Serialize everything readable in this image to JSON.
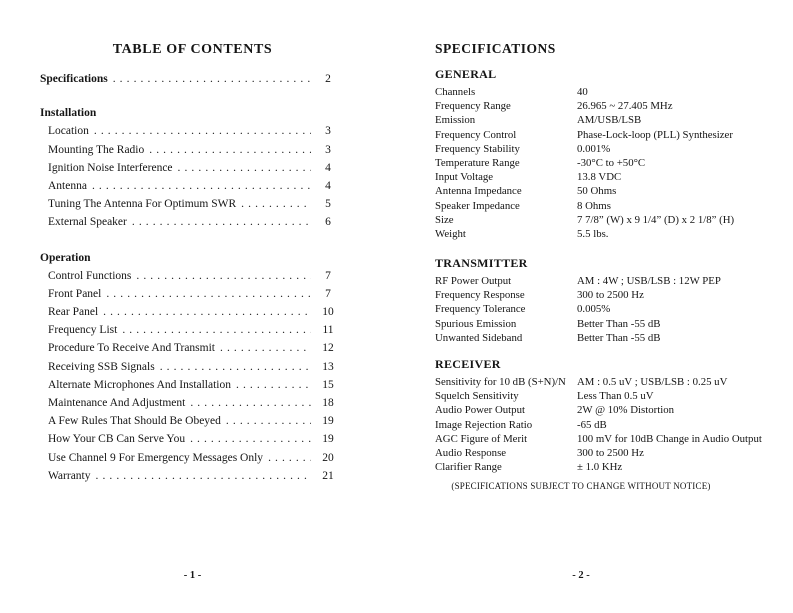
{
  "page1": {
    "title": "TABLE OF CONTENTS",
    "spec_entry": {
      "label": "Specifications",
      "page": "2"
    },
    "sections": [
      {
        "heading": "Installation",
        "items": [
          {
            "label": "Location",
            "page": "3"
          },
          {
            "label": "Mounting The Radio",
            "page": "3"
          },
          {
            "label": "Ignition Noise Interference",
            "page": "4"
          },
          {
            "label": "Antenna",
            "page": "4"
          },
          {
            "label": "Tuning The Antenna For Optimum SWR",
            "page": "5"
          },
          {
            "label": "External Speaker",
            "page": "6"
          }
        ]
      },
      {
        "heading": "Operation",
        "items": [
          {
            "label": "Control Functions",
            "page": "7"
          },
          {
            "label": "Front Panel",
            "page": "7"
          },
          {
            "label": "Rear Panel",
            "page": "10"
          },
          {
            "label": "Frequency List",
            "page": "11"
          },
          {
            "label": "Procedure To Receive And Transmit",
            "page": "12"
          },
          {
            "label": "Receiving SSB Signals",
            "page": "13"
          },
          {
            "label": "Alternate Microphones And Installation",
            "page": "15"
          },
          {
            "label": "Maintenance And Adjustment",
            "page": "18"
          },
          {
            "label": "A Few Rules That Should Be Obeyed",
            "page": "19"
          },
          {
            "label": "How Your CB Can Serve You",
            "page": "19"
          },
          {
            "label": "Use Channel 9 For Emergency Messages Only",
            "page": "20"
          },
          {
            "label": "Warranty",
            "page": "21"
          }
        ]
      }
    ],
    "footer": "- 1 -"
  },
  "page2": {
    "title": "SPECIFICATIONS",
    "sections": [
      {
        "heading": "GENERAL",
        "rows": [
          {
            "label": "Channels",
            "value": "40"
          },
          {
            "label": "Frequency Range",
            "value": "26.965 ~ 27.405 MHz"
          },
          {
            "label": "Emission",
            "value": "AM/USB/LSB"
          },
          {
            "label": "Frequency Control",
            "value": "Phase-Lock-loop (PLL) Synthesizer"
          },
          {
            "label": "Frequency Stability",
            "value": "0.001%"
          },
          {
            "label": "Temperature Range",
            "value": "-30°C to +50°C"
          },
          {
            "label": "Input Voltage",
            "value": "13.8 VDC"
          },
          {
            "label": "Antenna Impedance",
            "value": "50 Ohms"
          },
          {
            "label": "Speaker Impedance",
            "value": "8 Ohms"
          },
          {
            "label": "Size",
            "value": "7 7/8” (W) x 9 1/4” (D) x 2 1/8” (H)"
          },
          {
            "label": "Weight",
            "value": "5.5 lbs."
          }
        ]
      },
      {
        "heading": "TRANSMITTER",
        "rows": [
          {
            "label": "RF Power Output",
            "value": "AM : 4W ; USB/LSB : 12W PEP"
          },
          {
            "label": "Frequency Response",
            "value": "300 to 2500 Hz"
          },
          {
            "label": "Frequency Tolerance",
            "value": "0.005%"
          },
          {
            "label": "Spurious Emission",
            "value": "Better Than -55 dB"
          },
          {
            "label": "Unwanted Sideband",
            "value": "Better Than -55 dB"
          }
        ]
      },
      {
        "heading": "RECEIVER",
        "rows": [
          {
            "label": "Sensitivity for 10 dB (S+N)/N",
            "value": "AM : 0.5 uV  ; USB/LSB : 0.25 uV"
          },
          {
            "label": "Squelch Sensitivity",
            "value": "Less Than 0.5 uV"
          },
          {
            "label": "Audio Power Output",
            "value": "2W @ 10% Distortion"
          },
          {
            "label": "Image Rejection Ratio",
            "value": "-65 dB"
          },
          {
            "label": "AGC Figure of Merit",
            "value": "100 mV for 10dB Change in Audio Output"
          },
          {
            "label": "Audio Response",
            "value": "300 to 2500 Hz"
          },
          {
            "label": "Clarifier Range",
            "value": "± 1.0 KHz"
          }
        ]
      }
    ],
    "note": "(SPECIFICATIONS SUBJECT TO CHANGE WITHOUT NOTICE)",
    "footer": "- 2 -"
  }
}
